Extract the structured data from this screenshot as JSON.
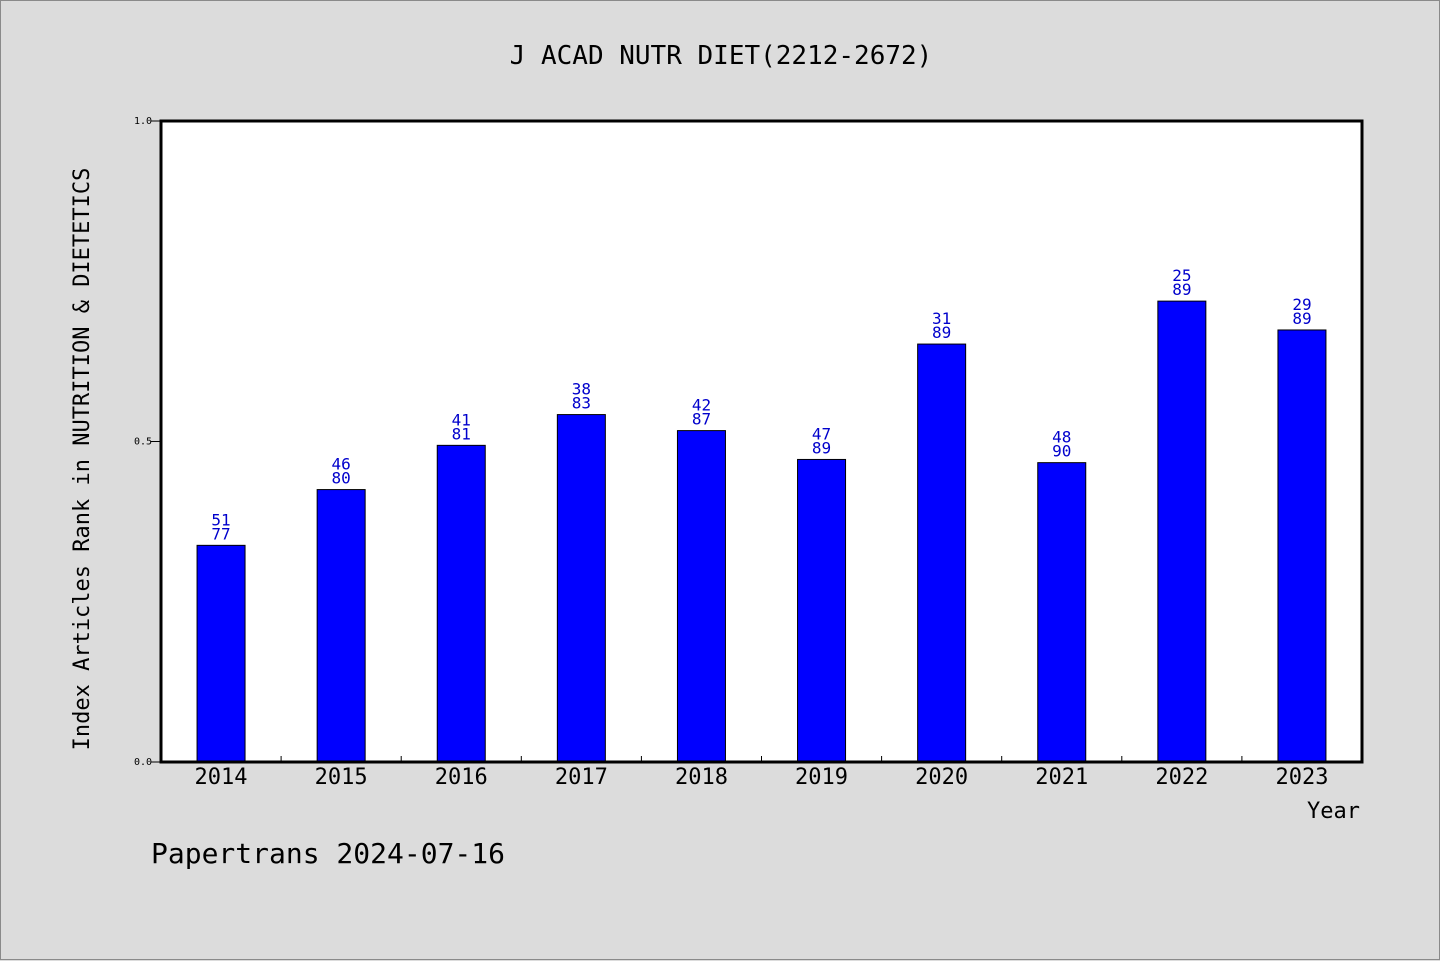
{
  "chart_data": {
    "type": "bar",
    "title": "J ACAD NUTR DIET(2212-2672)",
    "xlabel": "Year",
    "ylabel": "Index Articles Rank in NUTRITION & DIETETICS",
    "ylim": [
      0.0,
      1.0
    ],
    "yticks": [
      "0.0",
      "0.5",
      "1.0"
    ],
    "yticks_values": [
      0.0,
      0.5,
      1.0
    ],
    "categories": [
      "2014",
      "2015",
      "2016",
      "2017",
      "2018",
      "2019",
      "2020",
      "2021",
      "2022",
      "2023"
    ],
    "values": [
      0.338,
      0.425,
      0.494,
      0.542,
      0.517,
      0.472,
      0.652,
      0.467,
      0.719,
      0.674
    ],
    "rank": [
      "51",
      "46",
      "41",
      "38",
      "42",
      "47",
      "31",
      "48",
      "25",
      "29"
    ],
    "total": [
      "77",
      "80",
      "81",
      "83",
      "87",
      "89",
      "89",
      "90",
      "89",
      "89"
    ],
    "bar_color": "#0000ff",
    "label_color": "#0000cc",
    "grid": false
  },
  "footer": "Papertrans 2024-07-16"
}
